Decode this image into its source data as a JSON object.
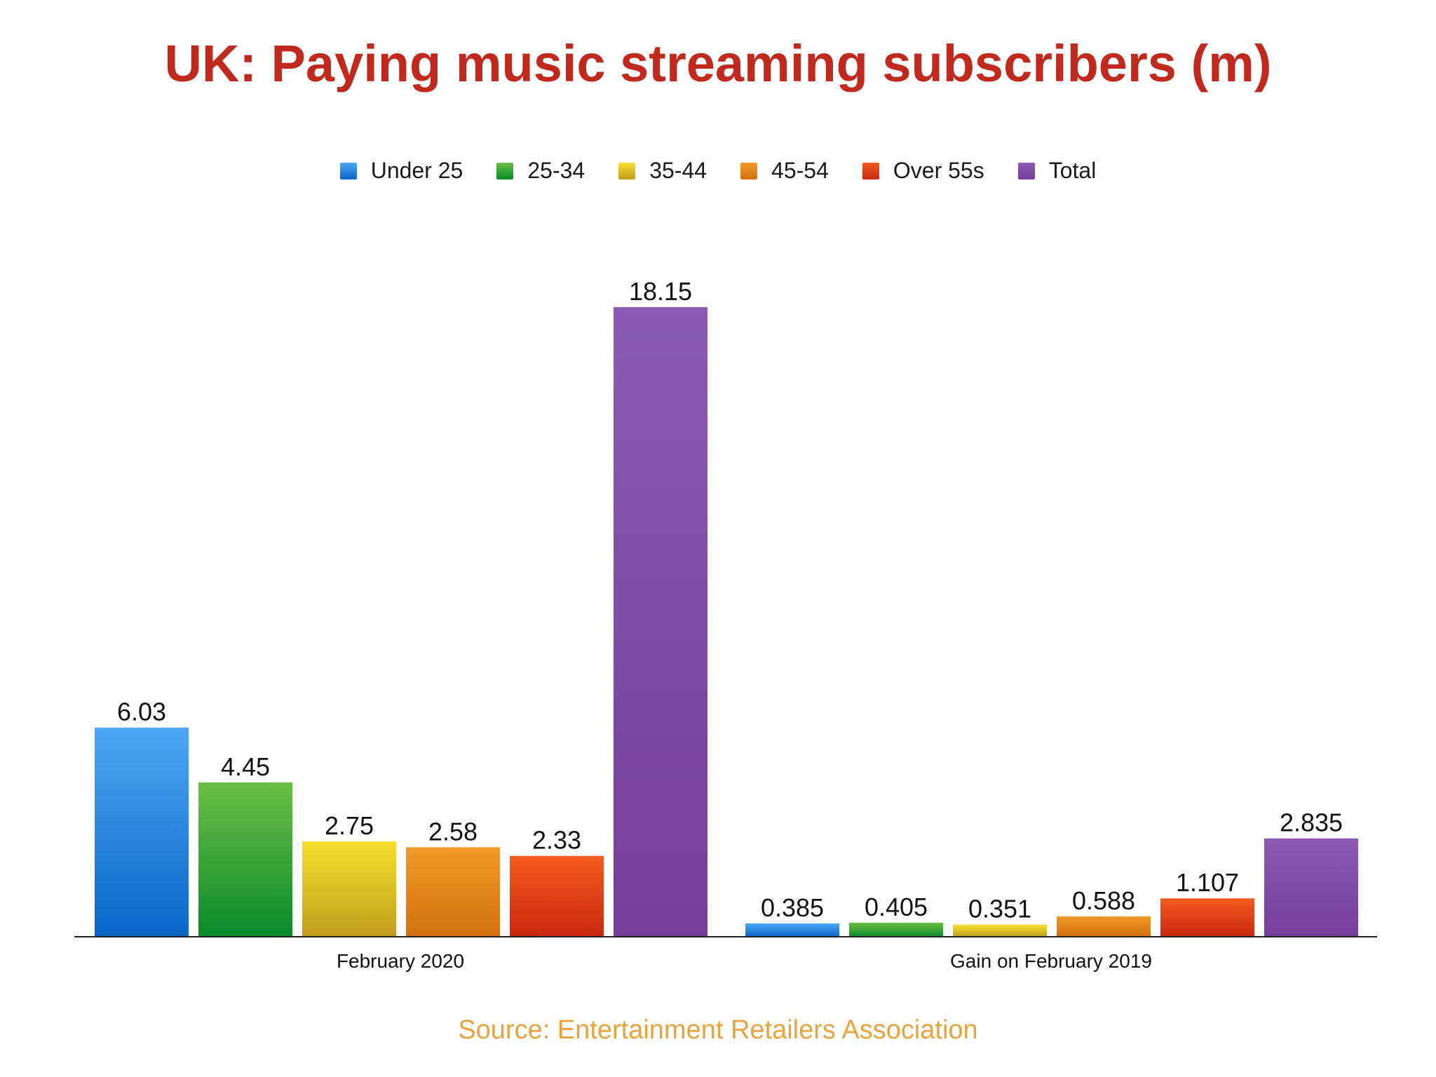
{
  "chart_data": {
    "type": "bar",
    "title": "UK: Paying music streaming subscribers (m)",
    "source": "Source: Entertainment Retailers Association",
    "categories": [
      "February 2020",
      "Gain on February 2019"
    ],
    "value_labels": [
      [
        "6.03",
        "4.45",
        "2.75",
        "2.58",
        "2.33",
        "18.15"
      ],
      [
        "0.385",
        "0.405",
        "0.351",
        "0.588",
        "1.107",
        "2.835"
      ]
    ],
    "series": [
      {
        "name": "Under 25",
        "values": [
          6.03,
          0.385
        ],
        "color": "#2a86e0",
        "color_light": "#4ea6f5",
        "color_dark": "#0a66c8"
      },
      {
        "name": "25-34",
        "values": [
          4.45,
          0.405
        ],
        "color": "#2fa23c",
        "color_light": "#6bbf45",
        "color_dark": "#0a8a2a"
      },
      {
        "name": "35-44",
        "values": [
          2.75,
          0.351
        ],
        "color": "#e8c91f",
        "color_light": "#f7df30",
        "color_dark": "#c29d1c"
      },
      {
        "name": "45-54",
        "values": [
          2.58,
          0.588
        ],
        "color": "#e98a1e",
        "color_light": "#f09a2a",
        "color_dark": "#d4700f"
      },
      {
        "name": "Over 55s",
        "values": [
          2.33,
          1.107
        ],
        "color": "#e54318",
        "color_light": "#f55a20",
        "color_dark": "#c9280e"
      },
      {
        "name": "Total",
        "values": [
          18.15,
          2.835
        ],
        "color": "#7f4ca5",
        "color_light": "#8a5bb2",
        "color_dark": "#763e98"
      }
    ],
    "ylim": [
      0,
      18.15
    ],
    "grid": false,
    "legend_position": "top"
  }
}
